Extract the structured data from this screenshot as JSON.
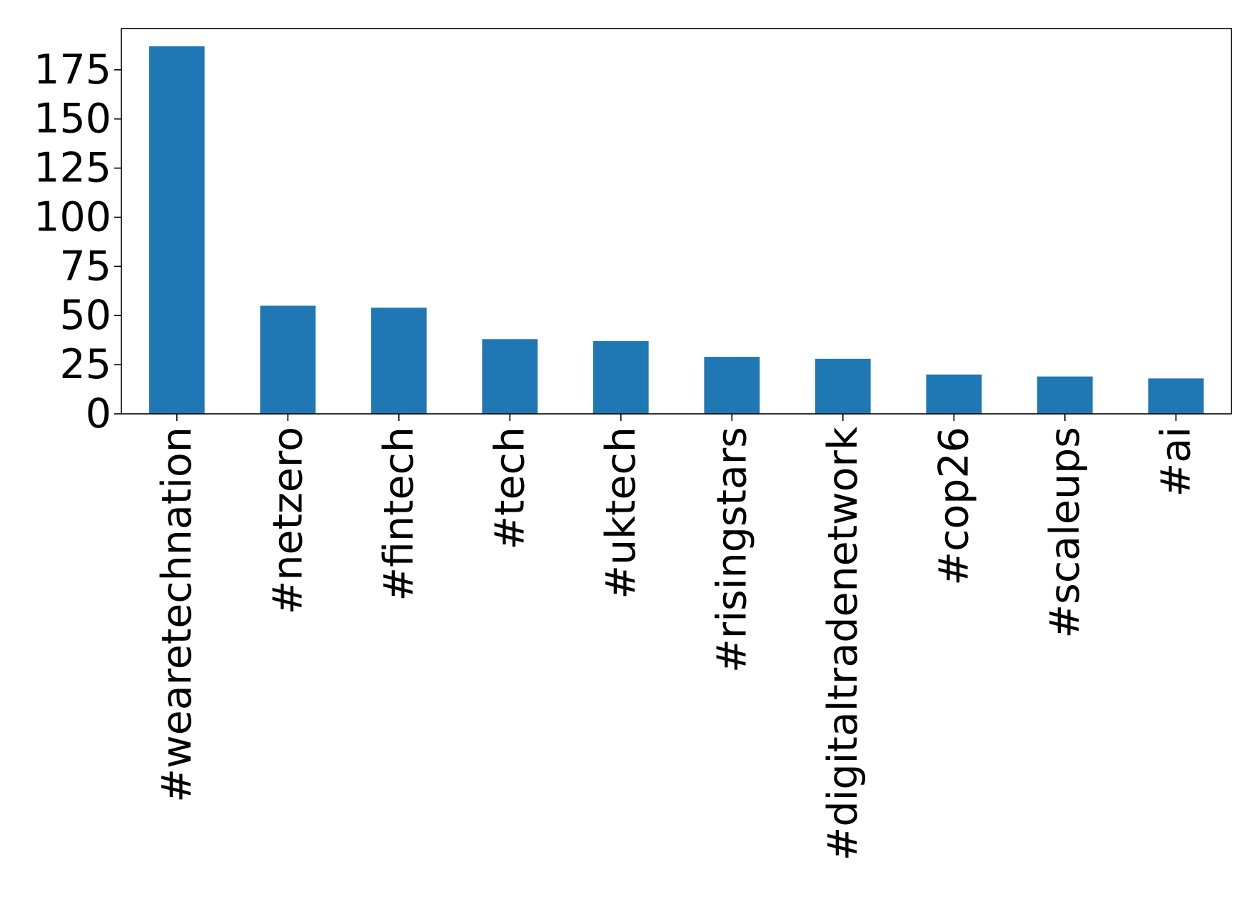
{
  "chart_data": {
    "type": "bar",
    "title": "",
    "xlabel": "",
    "ylabel": "",
    "categories": [
      "#wearetechnation",
      "#netzero",
      "#fintech",
      "#tech",
      "#uktech",
      "#risingstars",
      "#digitaltradenetwork",
      "#cop26",
      "#scaleups",
      "#ai"
    ],
    "values": [
      187,
      55,
      54,
      38,
      37,
      29,
      28,
      20,
      19,
      18
    ],
    "ylim": [
      0,
      196
    ],
    "yticks": [
      0,
      25,
      50,
      75,
      100,
      125,
      150,
      175
    ],
    "grid": false,
    "legend": "none",
    "bar_color": "#1f77b4"
  }
}
